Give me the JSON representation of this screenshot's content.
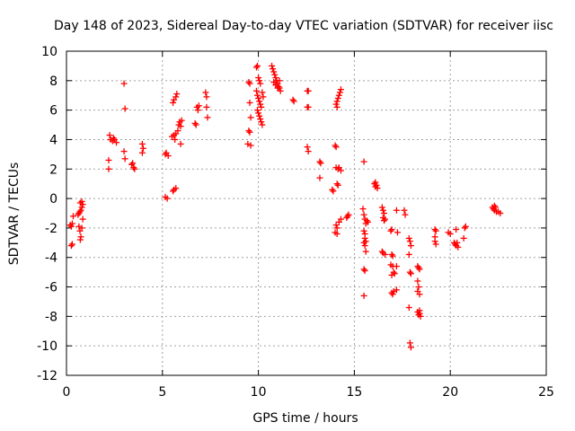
{
  "chart_data": {
    "type": "scatter",
    "title": "Day 148 of 2023, Sidereal Day-to-day VTEC variation (SDTVAR) for receiver iisc",
    "xlabel": "GPS time / hours",
    "ylabel": "SDTVAR / TECUs",
    "xlim": [
      0,
      25
    ],
    "ylim": [
      -12,
      10
    ],
    "xticks": [
      "0",
      "5",
      "10",
      "15",
      "20",
      "25"
    ],
    "yticks": [
      "-12",
      "-10",
      "-8",
      "-6",
      "-4",
      "-2",
      "0",
      "2",
      "4",
      "6",
      "8",
      "10"
    ],
    "grid": true,
    "marker": "+",
    "color": "#ff0000",
    "series": [
      {
        "name": "SDTVAR",
        "points": [
          [
            0.2,
            -1.8
          ],
          [
            0.25,
            -1.9
          ],
          [
            0.3,
            -1.7
          ],
          [
            0.35,
            -1.2
          ],
          [
            0.25,
            -3.2
          ],
          [
            0.3,
            -3.1
          ],
          [
            0.6,
            -1.1
          ],
          [
            0.65,
            -1.0
          ],
          [
            0.7,
            -0.9
          ],
          [
            0.75,
            -0.8
          ],
          [
            0.8,
            -0.6
          ],
          [
            0.72,
            -0.3
          ],
          [
            0.8,
            -0.2
          ],
          [
            0.85,
            -0.4
          ],
          [
            0.65,
            -1.9
          ],
          [
            0.7,
            -2.2
          ],
          [
            0.75,
            -2.6
          ],
          [
            0.72,
            -2.8
          ],
          [
            0.8,
            -2.0
          ],
          [
            0.85,
            -1.4
          ],
          [
            2.2,
            2.6
          ],
          [
            2.2,
            2.0
          ],
          [
            2.25,
            4.3
          ],
          [
            2.3,
            4.0
          ],
          [
            2.4,
            3.9
          ],
          [
            2.5,
            4.0
          ],
          [
            2.6,
            3.8
          ],
          [
            2.45,
            4.1
          ],
          [
            3.0,
            7.8
          ],
          [
            3.05,
            6.1
          ],
          [
            3.0,
            3.2
          ],
          [
            3.05,
            2.7
          ],
          [
            3.4,
            2.3
          ],
          [
            3.5,
            2.1
          ],
          [
            3.55,
            2.0
          ],
          [
            3.45,
            2.4
          ],
          [
            3.95,
            3.1
          ],
          [
            4.0,
            3.4
          ],
          [
            3.95,
            3.7
          ],
          [
            5.15,
            0.1
          ],
          [
            5.25,
            0.0
          ],
          [
            5.15,
            3.0
          ],
          [
            5.2,
            3.1
          ],
          [
            5.3,
            2.9
          ],
          [
            5.55,
            0.5
          ],
          [
            5.6,
            0.6
          ],
          [
            5.7,
            0.7
          ],
          [
            5.5,
            4.2
          ],
          [
            5.6,
            4.3
          ],
          [
            5.7,
            4.4
          ],
          [
            5.8,
            4.6
          ],
          [
            5.65,
            4.0
          ],
          [
            5.55,
            6.5
          ],
          [
            5.6,
            6.7
          ],
          [
            5.7,
            6.9
          ],
          [
            5.75,
            7.1
          ],
          [
            5.85,
            5.0
          ],
          [
            5.9,
            5.2
          ],
          [
            5.95,
            4.9
          ],
          [
            6.0,
            5.3
          ],
          [
            5.95,
            3.7
          ],
          [
            6.7,
            5.1
          ],
          [
            6.75,
            5.0
          ],
          [
            6.8,
            6.2
          ],
          [
            6.85,
            6.0
          ],
          [
            6.9,
            6.3
          ],
          [
            7.25,
            7.2
          ],
          [
            7.3,
            6.9
          ],
          [
            7.3,
            6.2
          ],
          [
            7.35,
            5.5
          ],
          [
            9.5,
            7.9
          ],
          [
            9.55,
            7.8
          ],
          [
            9.55,
            6.5
          ],
          [
            9.6,
            5.5
          ],
          [
            9.5,
            4.6
          ],
          [
            9.55,
            4.5
          ],
          [
            9.45,
            3.7
          ],
          [
            9.6,
            3.6
          ],
          [
            9.9,
            8.9
          ],
          [
            9.95,
            9.0
          ],
          [
            10.0,
            8.2
          ],
          [
            10.05,
            8.0
          ],
          [
            10.1,
            7.8
          ],
          [
            9.9,
            7.3
          ],
          [
            9.95,
            7.0
          ],
          [
            10.0,
            6.8
          ],
          [
            10.05,
            6.6
          ],
          [
            10.1,
            6.4
          ],
          [
            10.15,
            6.2
          ],
          [
            9.95,
            6.0
          ],
          [
            10.0,
            5.8
          ],
          [
            10.05,
            5.6
          ],
          [
            10.1,
            5.4
          ],
          [
            10.15,
            5.2
          ],
          [
            10.2,
            5.0
          ],
          [
            10.25,
            6.9
          ],
          [
            10.2,
            7.2
          ],
          [
            10.7,
            9.0
          ],
          [
            10.75,
            8.8
          ],
          [
            10.8,
            8.6
          ],
          [
            10.85,
            8.4
          ],
          [
            10.9,
            8.2
          ],
          [
            10.95,
            8.0
          ],
          [
            11.0,
            7.8
          ],
          [
            11.05,
            7.6
          ],
          [
            11.1,
            7.5
          ],
          [
            10.8,
            7.9
          ],
          [
            10.9,
            7.7
          ],
          [
            11.1,
            8.0
          ],
          [
            11.15,
            7.3
          ],
          [
            11.0,
            7.5
          ],
          [
            11.8,
            6.7
          ],
          [
            11.85,
            6.6
          ],
          [
            12.55,
            7.3
          ],
          [
            12.6,
            7.3
          ],
          [
            12.55,
            6.2
          ],
          [
            12.6,
            6.2
          ],
          [
            12.55,
            3.5
          ],
          [
            12.6,
            3.2
          ],
          [
            13.2,
            2.5
          ],
          [
            13.25,
            2.4
          ],
          [
            13.2,
            1.4
          ],
          [
            13.85,
            0.6
          ],
          [
            13.9,
            0.5
          ],
          [
            14.05,
            6.4
          ],
          [
            14.1,
            6.6
          ],
          [
            14.15,
            6.8
          ],
          [
            14.2,
            7.0
          ],
          [
            14.25,
            7.2
          ],
          [
            14.3,
            7.4
          ],
          [
            14.1,
            6.2
          ],
          [
            14.0,
            3.6
          ],
          [
            14.05,
            3.5
          ],
          [
            14.05,
            2.1
          ],
          [
            14.15,
            2.0
          ],
          [
            14.2,
            2.1
          ],
          [
            14.3,
            1.9
          ],
          [
            14.1,
            1.0
          ],
          [
            14.15,
            0.9
          ],
          [
            14.05,
            -1.8
          ],
          [
            14.1,
            -2.0
          ],
          [
            14.0,
            -2.3
          ],
          [
            14.1,
            -2.4
          ],
          [
            14.2,
            -1.6
          ],
          [
            14.3,
            -1.4
          ],
          [
            14.6,
            -1.3
          ],
          [
            14.65,
            -1.2
          ],
          [
            14.7,
            -1.1
          ],
          [
            15.5,
            2.5
          ],
          [
            15.45,
            -0.7
          ],
          [
            15.5,
            -1.1
          ],
          [
            15.55,
            -1.4
          ],
          [
            15.6,
            -1.7
          ],
          [
            15.65,
            -1.5
          ],
          [
            15.7,
            -1.6
          ],
          [
            15.5,
            -2.2
          ],
          [
            15.55,
            -2.7
          ],
          [
            15.6,
            -2.9
          ],
          [
            15.5,
            -3.0
          ],
          [
            15.55,
            -3.2
          ],
          [
            15.6,
            -3.6
          ],
          [
            15.55,
            -2.4
          ],
          [
            15.5,
            -4.8
          ],
          [
            15.55,
            -4.9
          ],
          [
            15.5,
            -6.6
          ],
          [
            16.05,
            1.0
          ],
          [
            16.1,
            0.8
          ],
          [
            16.15,
            0.9
          ],
          [
            16.2,
            0.7
          ],
          [
            16.1,
            1.1
          ],
          [
            16.45,
            -0.6
          ],
          [
            16.5,
            -0.8
          ],
          [
            16.55,
            -1.0
          ],
          [
            16.5,
            -1.3
          ],
          [
            16.55,
            -1.5
          ],
          [
            16.6,
            -1.4
          ],
          [
            16.45,
            -3.6
          ],
          [
            16.5,
            -3.7
          ],
          [
            16.6,
            -3.8
          ],
          [
            16.9,
            -2.2
          ],
          [
            16.95,
            -2.1
          ],
          [
            16.95,
            -3.8
          ],
          [
            17.0,
            -3.9
          ],
          [
            16.9,
            -4.5
          ],
          [
            17.0,
            -4.6
          ],
          [
            17.05,
            -5.0
          ],
          [
            17.1,
            -5.1
          ],
          [
            16.95,
            -5.2
          ],
          [
            17.2,
            -4.6
          ],
          [
            16.95,
            -6.4
          ],
          [
            17.0,
            -6.5
          ],
          [
            17.05,
            -6.3
          ],
          [
            17.2,
            -6.2
          ],
          [
            17.2,
            -0.8
          ],
          [
            17.25,
            -2.3
          ],
          [
            17.6,
            -0.8
          ],
          [
            17.65,
            -1.1
          ],
          [
            17.85,
            -2.7
          ],
          [
            17.9,
            -2.9
          ],
          [
            17.95,
            -3.2
          ],
          [
            17.85,
            -3.8
          ],
          [
            17.9,
            -5.0
          ],
          [
            17.95,
            -5.1
          ],
          [
            17.85,
            -7.4
          ],
          [
            17.9,
            -9.8
          ],
          [
            17.95,
            -10.1
          ],
          [
            18.3,
            -4.6
          ],
          [
            18.35,
            -4.7
          ],
          [
            18.4,
            -4.8
          ],
          [
            18.3,
            -5.6
          ],
          [
            18.35,
            -6.0
          ],
          [
            18.3,
            -6.3
          ],
          [
            18.4,
            -6.5
          ],
          [
            18.3,
            -7.7
          ],
          [
            18.35,
            -7.9
          ],
          [
            18.4,
            -7.8
          ],
          [
            18.45,
            -8.0
          ],
          [
            18.4,
            -7.6
          ],
          [
            19.2,
            -2.1
          ],
          [
            19.25,
            -2.2
          ],
          [
            19.2,
            -2.6
          ],
          [
            19.2,
            -2.9
          ],
          [
            19.25,
            -3.1
          ],
          [
            19.9,
            -2.3
          ],
          [
            20.0,
            -2.4
          ],
          [
            20.2,
            -3.0
          ],
          [
            20.25,
            -3.1
          ],
          [
            20.3,
            -3.2
          ],
          [
            20.35,
            -3.0
          ],
          [
            20.4,
            -3.3
          ],
          [
            20.3,
            -2.1
          ],
          [
            20.75,
            -2.0
          ],
          [
            20.8,
            -1.9
          ],
          [
            20.7,
            -2.7
          ],
          [
            22.2,
            -0.6
          ],
          [
            22.25,
            -0.7
          ],
          [
            22.3,
            -0.8
          ],
          [
            22.35,
            -0.6
          ],
          [
            22.4,
            -0.9
          ],
          [
            22.5,
            -0.9
          ],
          [
            22.6,
            -1.0
          ],
          [
            22.3,
            -0.5
          ]
        ]
      }
    ]
  }
}
